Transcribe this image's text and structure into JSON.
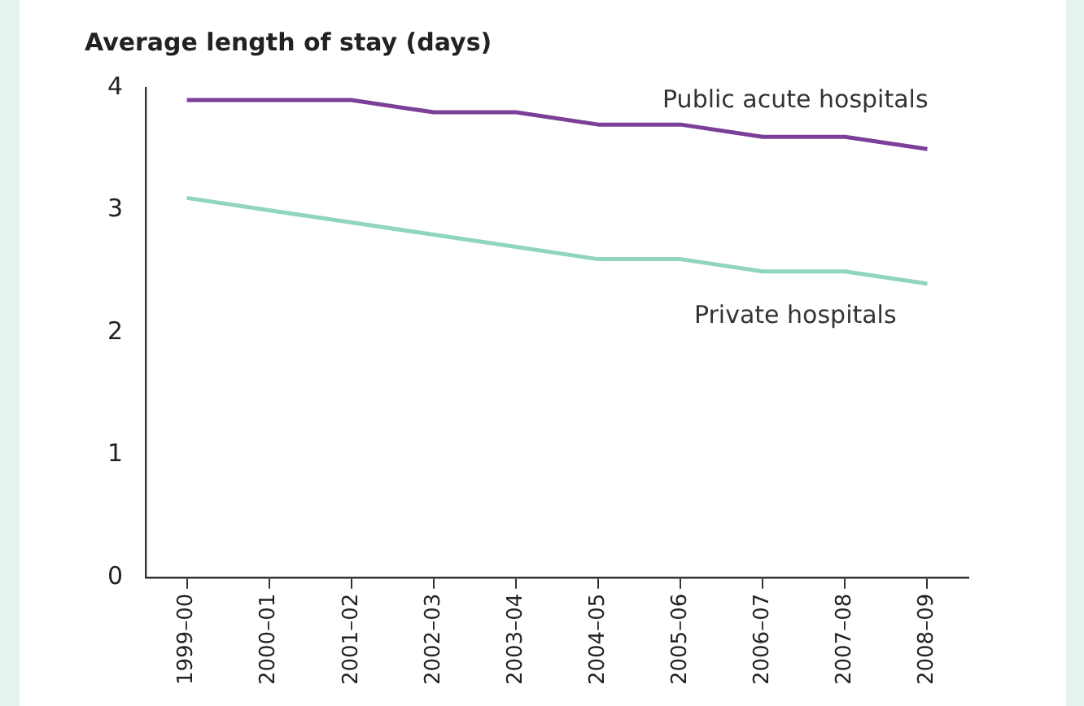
{
  "chart_data": {
    "type": "line",
    "title": "Average length of stay (days)",
    "categories": [
      "1999–00",
      "2000–01",
      "2001–02",
      "2002–03",
      "2003–04",
      "2004–05",
      "2005–06",
      "2006–07",
      "2007–08",
      "2008–09"
    ],
    "series": [
      {
        "name": "Public acute hospitals",
        "color": "#7b3f98",
        "values": [
          3.9,
          3.9,
          3.9,
          3.8,
          3.8,
          3.7,
          3.7,
          3.6,
          3.6,
          3.5
        ]
      },
      {
        "name": "Private hospitals",
        "color": "#90d5bd",
        "values": [
          3.1,
          3.0,
          2.9,
          2.8,
          2.7,
          2.6,
          2.6,
          2.5,
          2.5,
          2.4
        ]
      }
    ],
    "ylim": [
      0,
      4
    ],
    "yticks": [
      0,
      1,
      2,
      3,
      4
    ],
    "grid": false,
    "legend": false,
    "marker": "none",
    "line_style": "solid"
  }
}
